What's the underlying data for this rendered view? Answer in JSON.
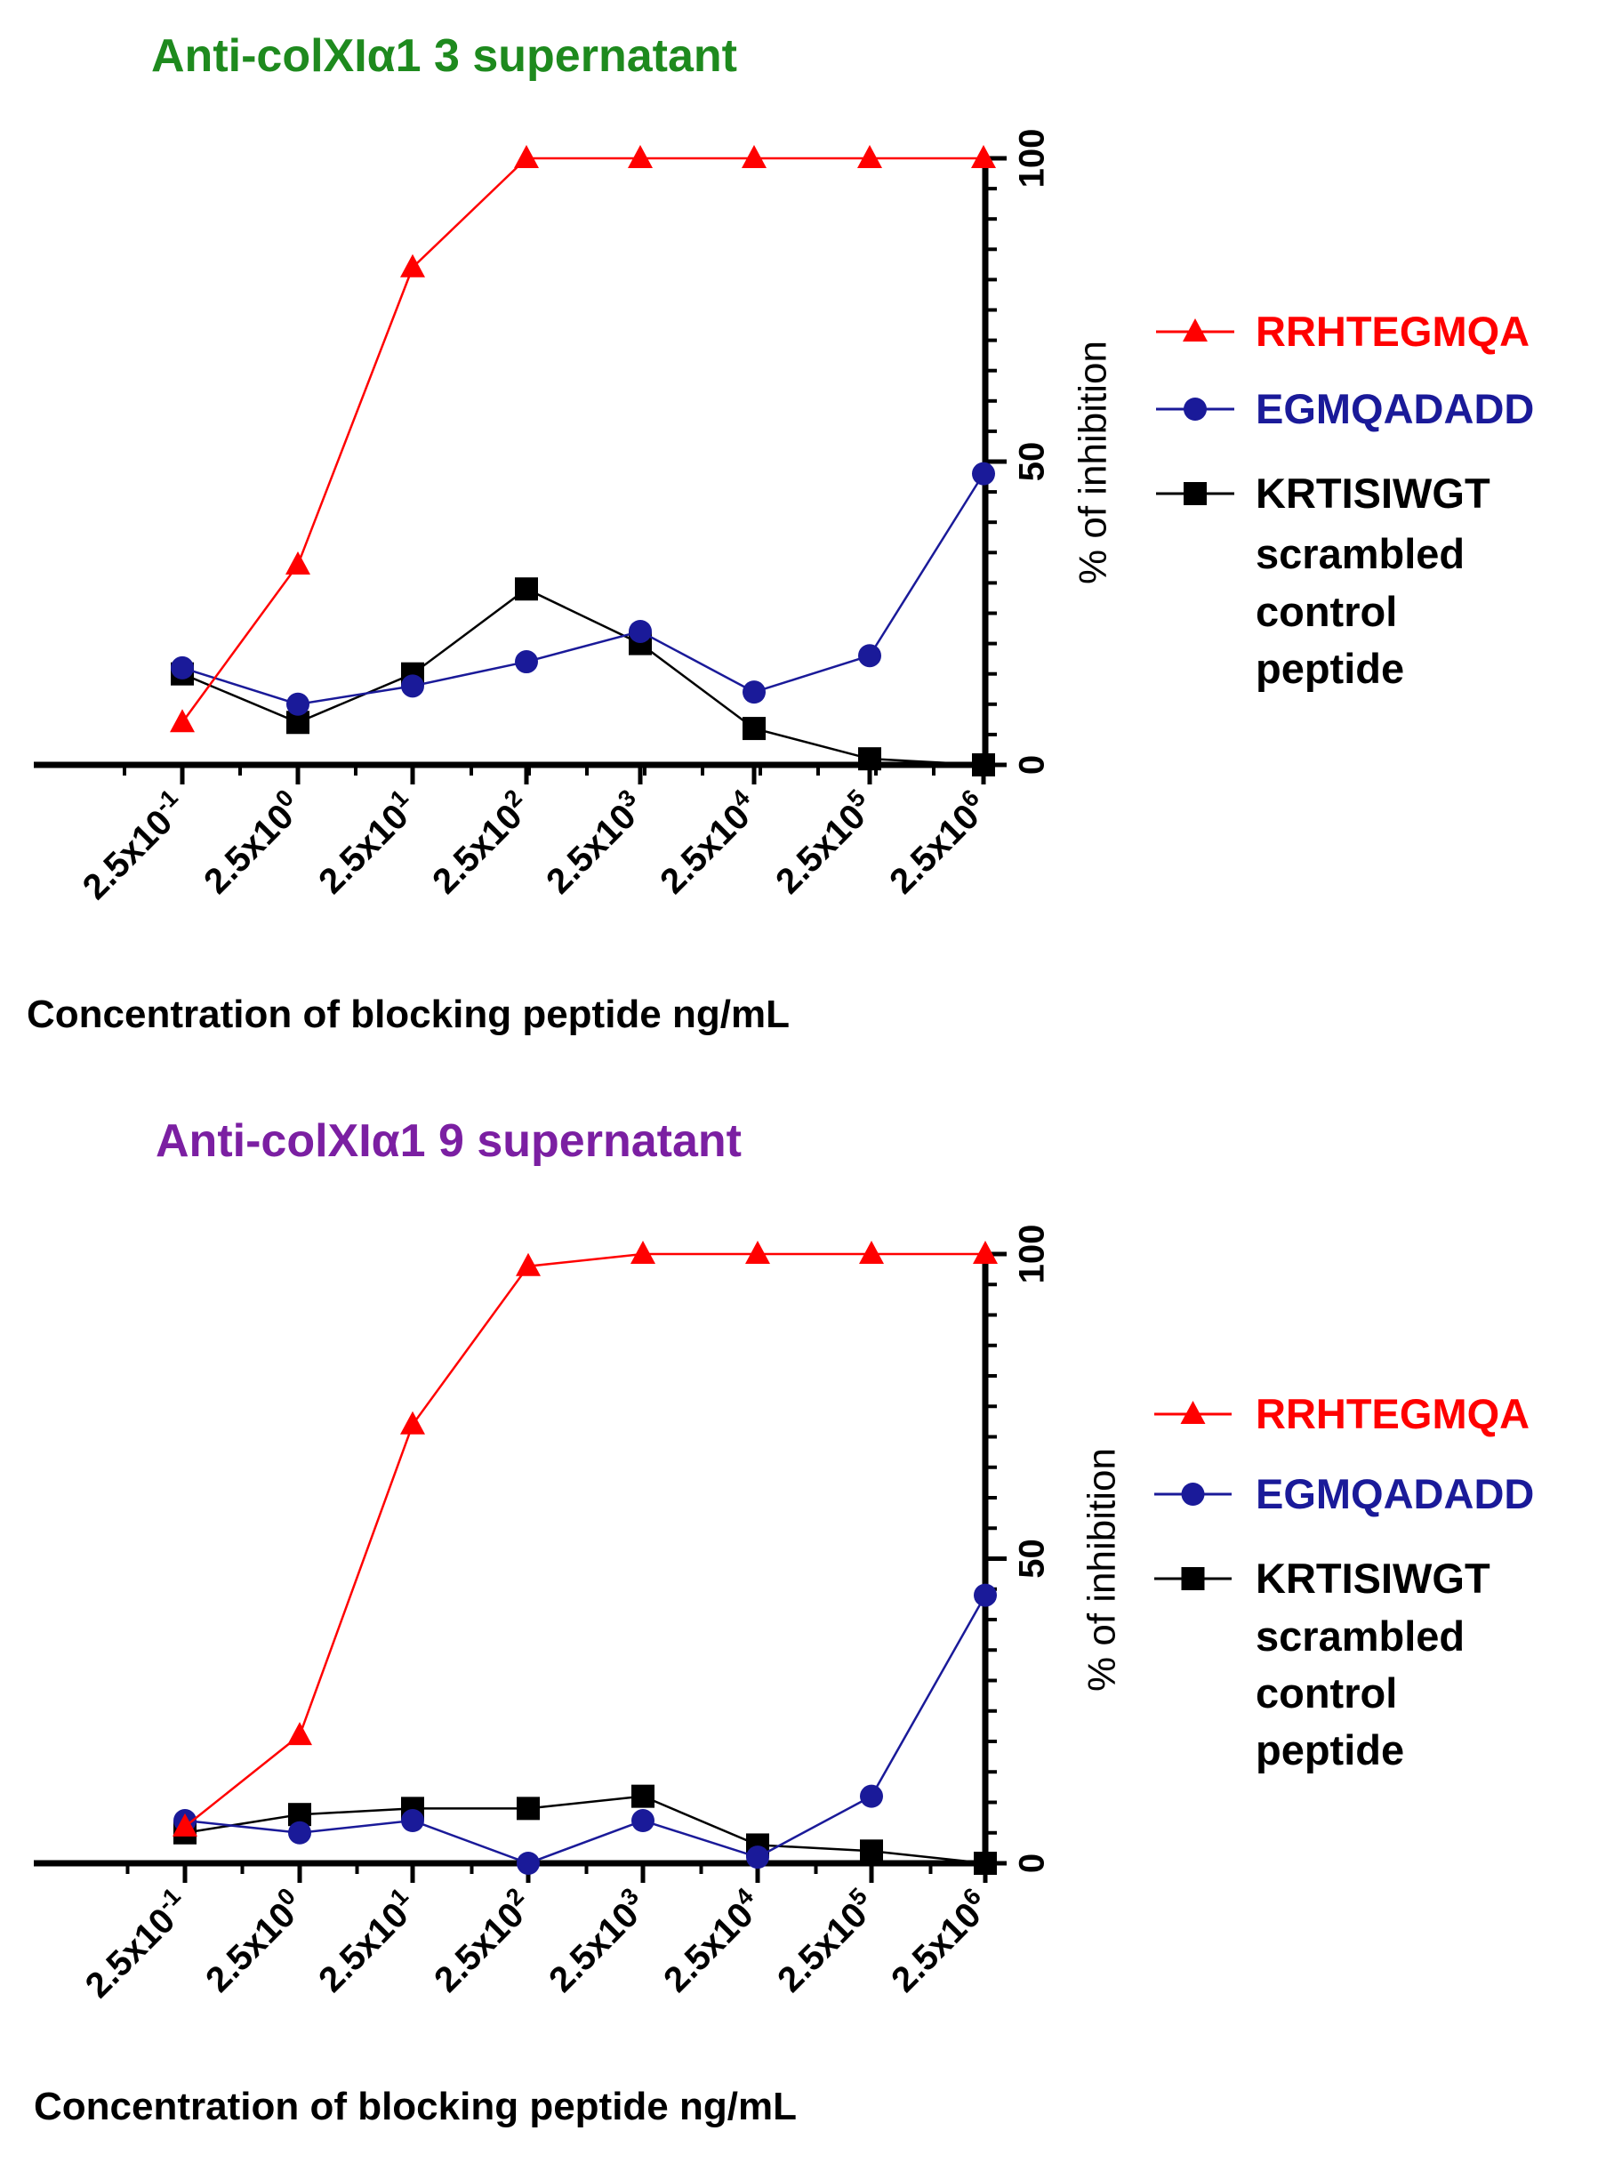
{
  "chart_data": [
    {
      "type": "line",
      "title": "Anti-colXIα1  3 supernatant",
      "title_color": "#1e8a1e",
      "xlabel": "Concentration of blocking peptide  ng/mL",
      "ylabel": "% of inhibition",
      "y_axis_side": "right",
      "ylim": [
        0,
        100
      ],
      "yticks": [
        0,
        50,
        100
      ],
      "categories": [
        {
          "base": "2.5x10",
          "exp": "-1"
        },
        {
          "base": "2.5x10",
          "exp": "0"
        },
        {
          "base": "2.5x10",
          "exp": "1"
        },
        {
          "base": "2.5x10",
          "exp": "2"
        },
        {
          "base": "2.5x10",
          "exp": "3"
        },
        {
          "base": "2.5x10",
          "exp": "4"
        },
        {
          "base": "2.5x10",
          "exp": "5"
        },
        {
          "base": "2.5x10",
          "exp": "6"
        }
      ],
      "series": [
        {
          "name": "RRHTEGMQA",
          "color": "#ff0000",
          "marker": "triangle",
          "values": [
            7,
            33,
            82,
            100,
            100,
            100,
            100,
            100
          ]
        },
        {
          "name": "EGMQADADD",
          "color": "#1a1a99",
          "marker": "circle",
          "values": [
            16,
            10,
            13,
            17,
            22,
            12,
            18,
            48
          ]
        },
        {
          "name": "KRTISIWGT",
          "legend_note": [
            "scrambled",
            "control",
            "peptide"
          ],
          "color": "#000000",
          "marker": "square",
          "values": [
            15,
            7,
            15,
            29,
            20,
            6,
            1,
            0
          ]
        }
      ]
    },
    {
      "type": "line",
      "title": "Anti-colXIα1  9 supernatant",
      "title_color": "#7b1fa2",
      "xlabel": "Concentration of blocking peptide  ng/mL",
      "ylabel": "% of inhibition",
      "y_axis_side": "right",
      "ylim": [
        0,
        100
      ],
      "yticks": [
        0,
        50,
        100
      ],
      "categories": [
        {
          "base": "2.5x10",
          "exp": "-1"
        },
        {
          "base": "2.5x10",
          "exp": "0"
        },
        {
          "base": "2.5x10",
          "exp": "1"
        },
        {
          "base": "2.5x10",
          "exp": "2"
        },
        {
          "base": "2.5x10",
          "exp": "3"
        },
        {
          "base": "2.5x10",
          "exp": "4"
        },
        {
          "base": "2.5x10",
          "exp": "5"
        },
        {
          "base": "2.5x10",
          "exp": "6"
        }
      ],
      "series": [
        {
          "name": "RRHTEGMQA",
          "color": "#ff0000",
          "marker": "triangle",
          "values": [
            6,
            21,
            72,
            98,
            100,
            100,
            100,
            100
          ]
        },
        {
          "name": "EGMQADADD",
          "color": "#1a1a99",
          "marker": "circle",
          "values": [
            7,
            5,
            7,
            0,
            7,
            1,
            11,
            44
          ]
        },
        {
          "name": "KRTISIWGT",
          "legend_note": [
            "scrambled",
            "control",
            "peptide"
          ],
          "color": "#000000",
          "marker": "square",
          "values": [
            5,
            8,
            9,
            9,
            11,
            3,
            2,
            0
          ]
        }
      ]
    }
  ]
}
